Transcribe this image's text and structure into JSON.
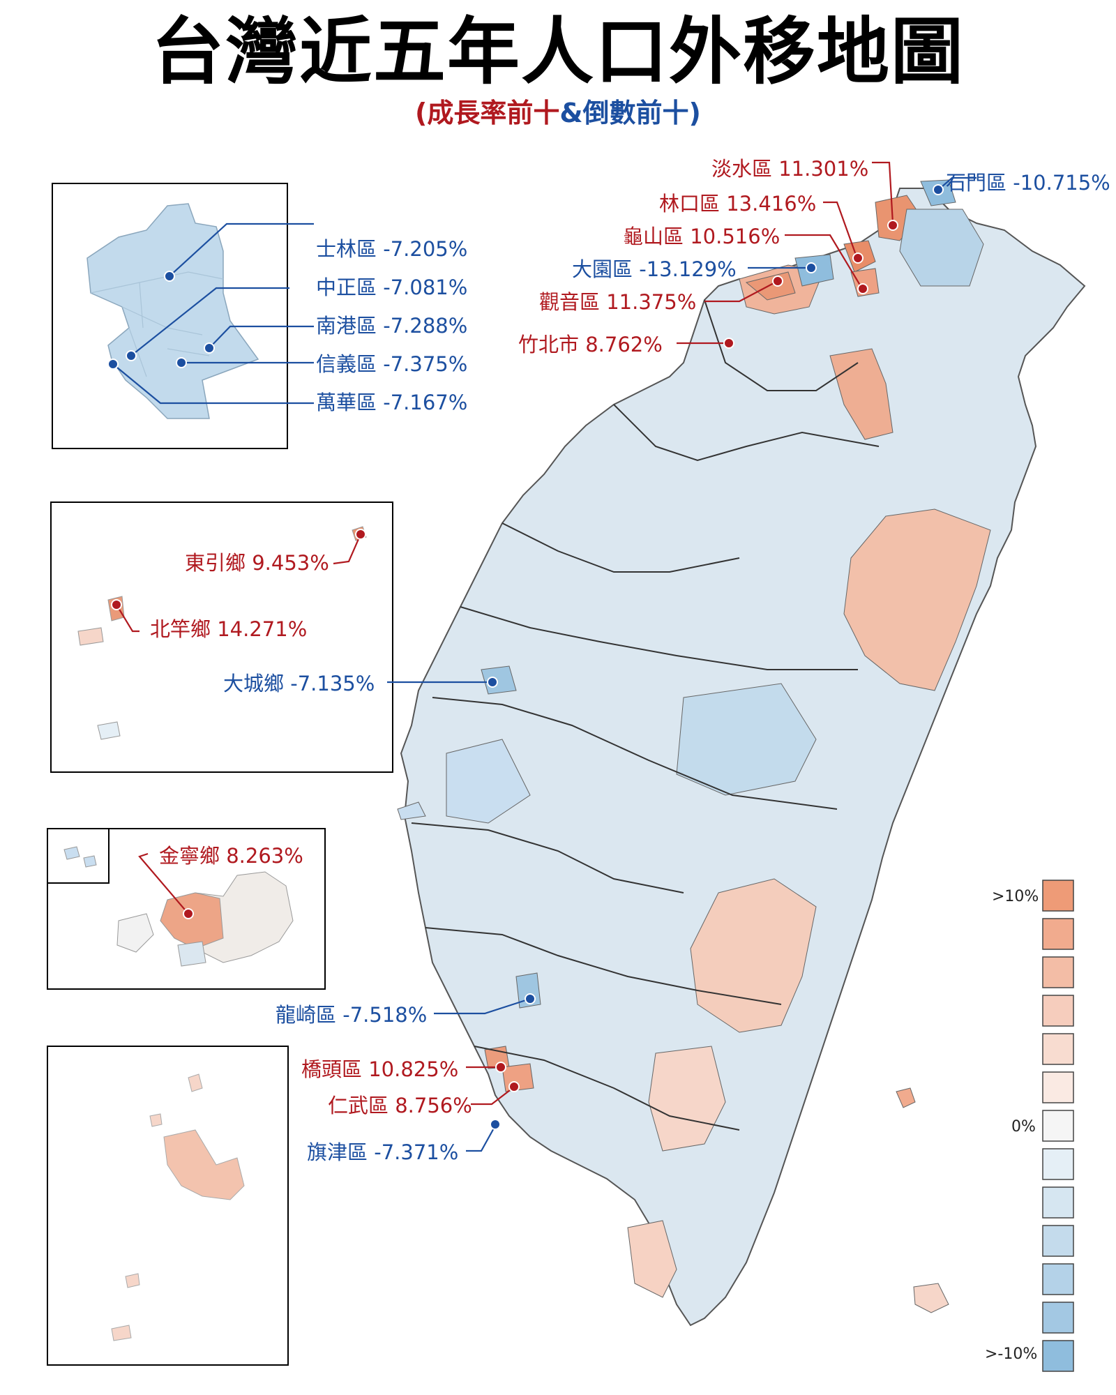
{
  "title": "台灣近五年人口外移地圖",
  "subtitle": {
    "part1": "(成長率前十",
    "part2": "&倒數前十)"
  },
  "colors": {
    "red": "#b0191f",
    "blue": "#1c4fa0",
    "main_region": "#dbe7f0",
    "growth": "#eaa486",
    "decline": "#a6c9e0",
    "boundary": "#333333"
  },
  "labels": {
    "tamsui": {
      "name": "淡水區",
      "value": "11.301%",
      "trend": "growth"
    },
    "shimen": {
      "name": "石門區",
      "value": "-10.715%",
      "trend": "decline"
    },
    "linkou": {
      "name": "林口區",
      "value": "13.416%",
      "trend": "growth"
    },
    "guishan": {
      "name": "龜山區",
      "value": "10.516%",
      "trend": "growth"
    },
    "dayuan": {
      "name": "大園區",
      "value": "-13.129%",
      "trend": "decline"
    },
    "guanyin": {
      "name": "觀音區",
      "value": "11.375%",
      "trend": "growth"
    },
    "zhubei": {
      "name": "竹北市",
      "value": "8.762%",
      "trend": "growth"
    },
    "shilin": {
      "name": "士林區",
      "value": "-7.205%",
      "trend": "decline"
    },
    "zhongzheng": {
      "name": "中正區",
      "value": "-7.081%",
      "trend": "decline"
    },
    "nangang": {
      "name": "南港區",
      "value": "-7.288%",
      "trend": "decline"
    },
    "xinyi": {
      "name": "信義區",
      "value": "-7.375%",
      "trend": "decline"
    },
    "wanhua": {
      "name": "萬華區",
      "value": "-7.167%",
      "trend": "decline"
    },
    "dongyin": {
      "name": "東引鄉",
      "value": "9.453%",
      "trend": "growth"
    },
    "beigan": {
      "name": "北竿鄉",
      "value": "14.271%",
      "trend": "growth"
    },
    "dacheng": {
      "name": "大城鄉",
      "value": "-7.135%",
      "trend": "decline"
    },
    "jinning": {
      "name": "金寧鄉",
      "value": "8.263%",
      "trend": "growth"
    },
    "longqi": {
      "name": "龍崎區",
      "value": "-7.518%",
      "trend": "decline"
    },
    "qiaotou": {
      "name": "橋頭區",
      "value": "10.825%",
      "trend": "growth"
    },
    "renwu": {
      "name": "仁武區",
      "value": "8.756%",
      "trend": "growth"
    },
    "qijin": {
      "name": "旗津區",
      "value": "-7.371%",
      "trend": "decline"
    }
  },
  "legend": {
    "top": ">10%",
    "mid": "0%",
    "bottom": ">-10%",
    "colors": [
      "#ee9b77",
      "#f1ab8e",
      "#f3bda6",
      "#f6cdbd",
      "#f8dcd0",
      "#faeae3",
      "#f5f5f5",
      "#e5eff6",
      "#d6e6f1",
      "#c4dbec",
      "#b4d2e8",
      "#a3c8e3",
      "#8fbddd"
    ]
  }
}
